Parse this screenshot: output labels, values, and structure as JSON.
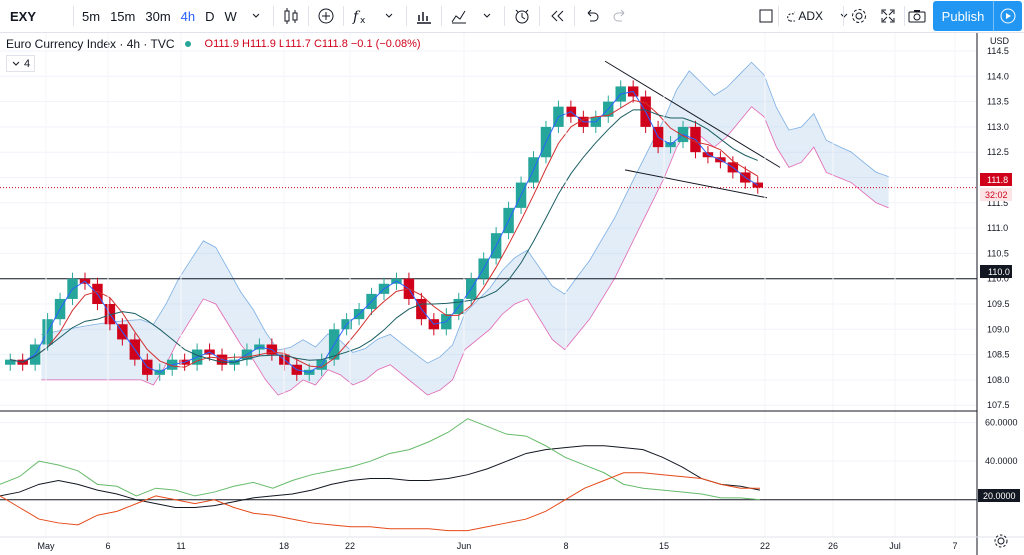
{
  "toolbar": {
    "symbol": "EXY",
    "timeframes": [
      "5m",
      "15m",
      "30m",
      "4h",
      "D",
      "W"
    ],
    "active_timeframe": "4h",
    "indicator_select": "ADX",
    "publish_label": "Publish"
  },
  "legend": {
    "title": "Euro Currency Index · 4h · TVC",
    "ohlc": "O111.9  H111.9  L111.7  C111.8  −0.1 (−0.08%)",
    "indicator_count": "4"
  },
  "price_axis": {
    "currency": "USD",
    "ticks": [
      "114.5",
      "114.0",
      "113.5",
      "113.0",
      "112.5",
      "112.0",
      "111.5",
      "111.0",
      "110.5",
      "110.0",
      "109.5",
      "109.0",
      "108.5",
      "108.0",
      "107.5"
    ],
    "last_price": "111.8",
    "countdown": "32:02",
    "level_label": "110.0"
  },
  "adx_axis": {
    "ticks": [
      "60.0000",
      "40.0000"
    ],
    "level_label": "20.0000"
  },
  "time_axis": {
    "ticks": [
      "May",
      "6",
      "11",
      "18",
      "22",
      "Jun",
      "8",
      "15",
      "22",
      "26",
      "Jul",
      "7"
    ]
  },
  "colors": {
    "up": "#26a69a",
    "down": "#d0021b",
    "accent": "#2962ff",
    "cloud_bull": "#9fc3e7",
    "cloud_bear": "#f48fcf"
  },
  "chart_data": {
    "type": "candlestick",
    "symbol": "Euro Currency Index",
    "price_range": [
      107.3,
      114.7
    ],
    "horizontal_levels": [
      110.0,
      111.8
    ],
    "adx_level": 20,
    "close_series": [
      108.4,
      108.3,
      108.7,
      109.2,
      109.6,
      110.0,
      109.9,
      109.5,
      109.1,
      108.8,
      108.4,
      108.1,
      108.2,
      108.4,
      108.3,
      108.6,
      108.5,
      108.3,
      108.4,
      108.6,
      108.7,
      108.5,
      108.3,
      108.1,
      108.2,
      108.4,
      109.0,
      109.2,
      109.4,
      109.7,
      109.9,
      110.0,
      109.6,
      109.2,
      109.0,
      109.3,
      109.6,
      110.0,
      110.4,
      110.9,
      111.4,
      111.9,
      112.4,
      113.0,
      113.4,
      113.2,
      113.0,
      113.2,
      113.5,
      113.8,
      113.6,
      113.0,
      112.6,
      112.7,
      113.0,
      112.5,
      112.4,
      112.3,
      112.1,
      111.9,
      111.8
    ],
    "adx": [
      22,
      24,
      28,
      30,
      28,
      25,
      23,
      20,
      18,
      16,
      16,
      17,
      19,
      21,
      22,
      23,
      25,
      28,
      30,
      31,
      31,
      30,
      30,
      31,
      33,
      36,
      40,
      44,
      46,
      47,
      48,
      48,
      47,
      46,
      42,
      37,
      31,
      28,
      27,
      25
    ],
    "di_plus": [
      28,
      32,
      40,
      38,
      35,
      28,
      27,
      22,
      26,
      25,
      22,
      24,
      27,
      29,
      26,
      30,
      33,
      35,
      37,
      40,
      44,
      46,
      50,
      55,
      62,
      58,
      54,
      53,
      48,
      42,
      38,
      34,
      28,
      26,
      25,
      24,
      23,
      21,
      21,
      20
    ],
    "di_minus": [
      22,
      16,
      10,
      8,
      7,
      12,
      14,
      18,
      22,
      20,
      18,
      20,
      16,
      13,
      12,
      10,
      8,
      7,
      6,
      6,
      5,
      5,
      5,
      4,
      4,
      6,
      8,
      10,
      14,
      20,
      26,
      30,
      34,
      34,
      33,
      32,
      31,
      28,
      26,
      26
    ]
  }
}
